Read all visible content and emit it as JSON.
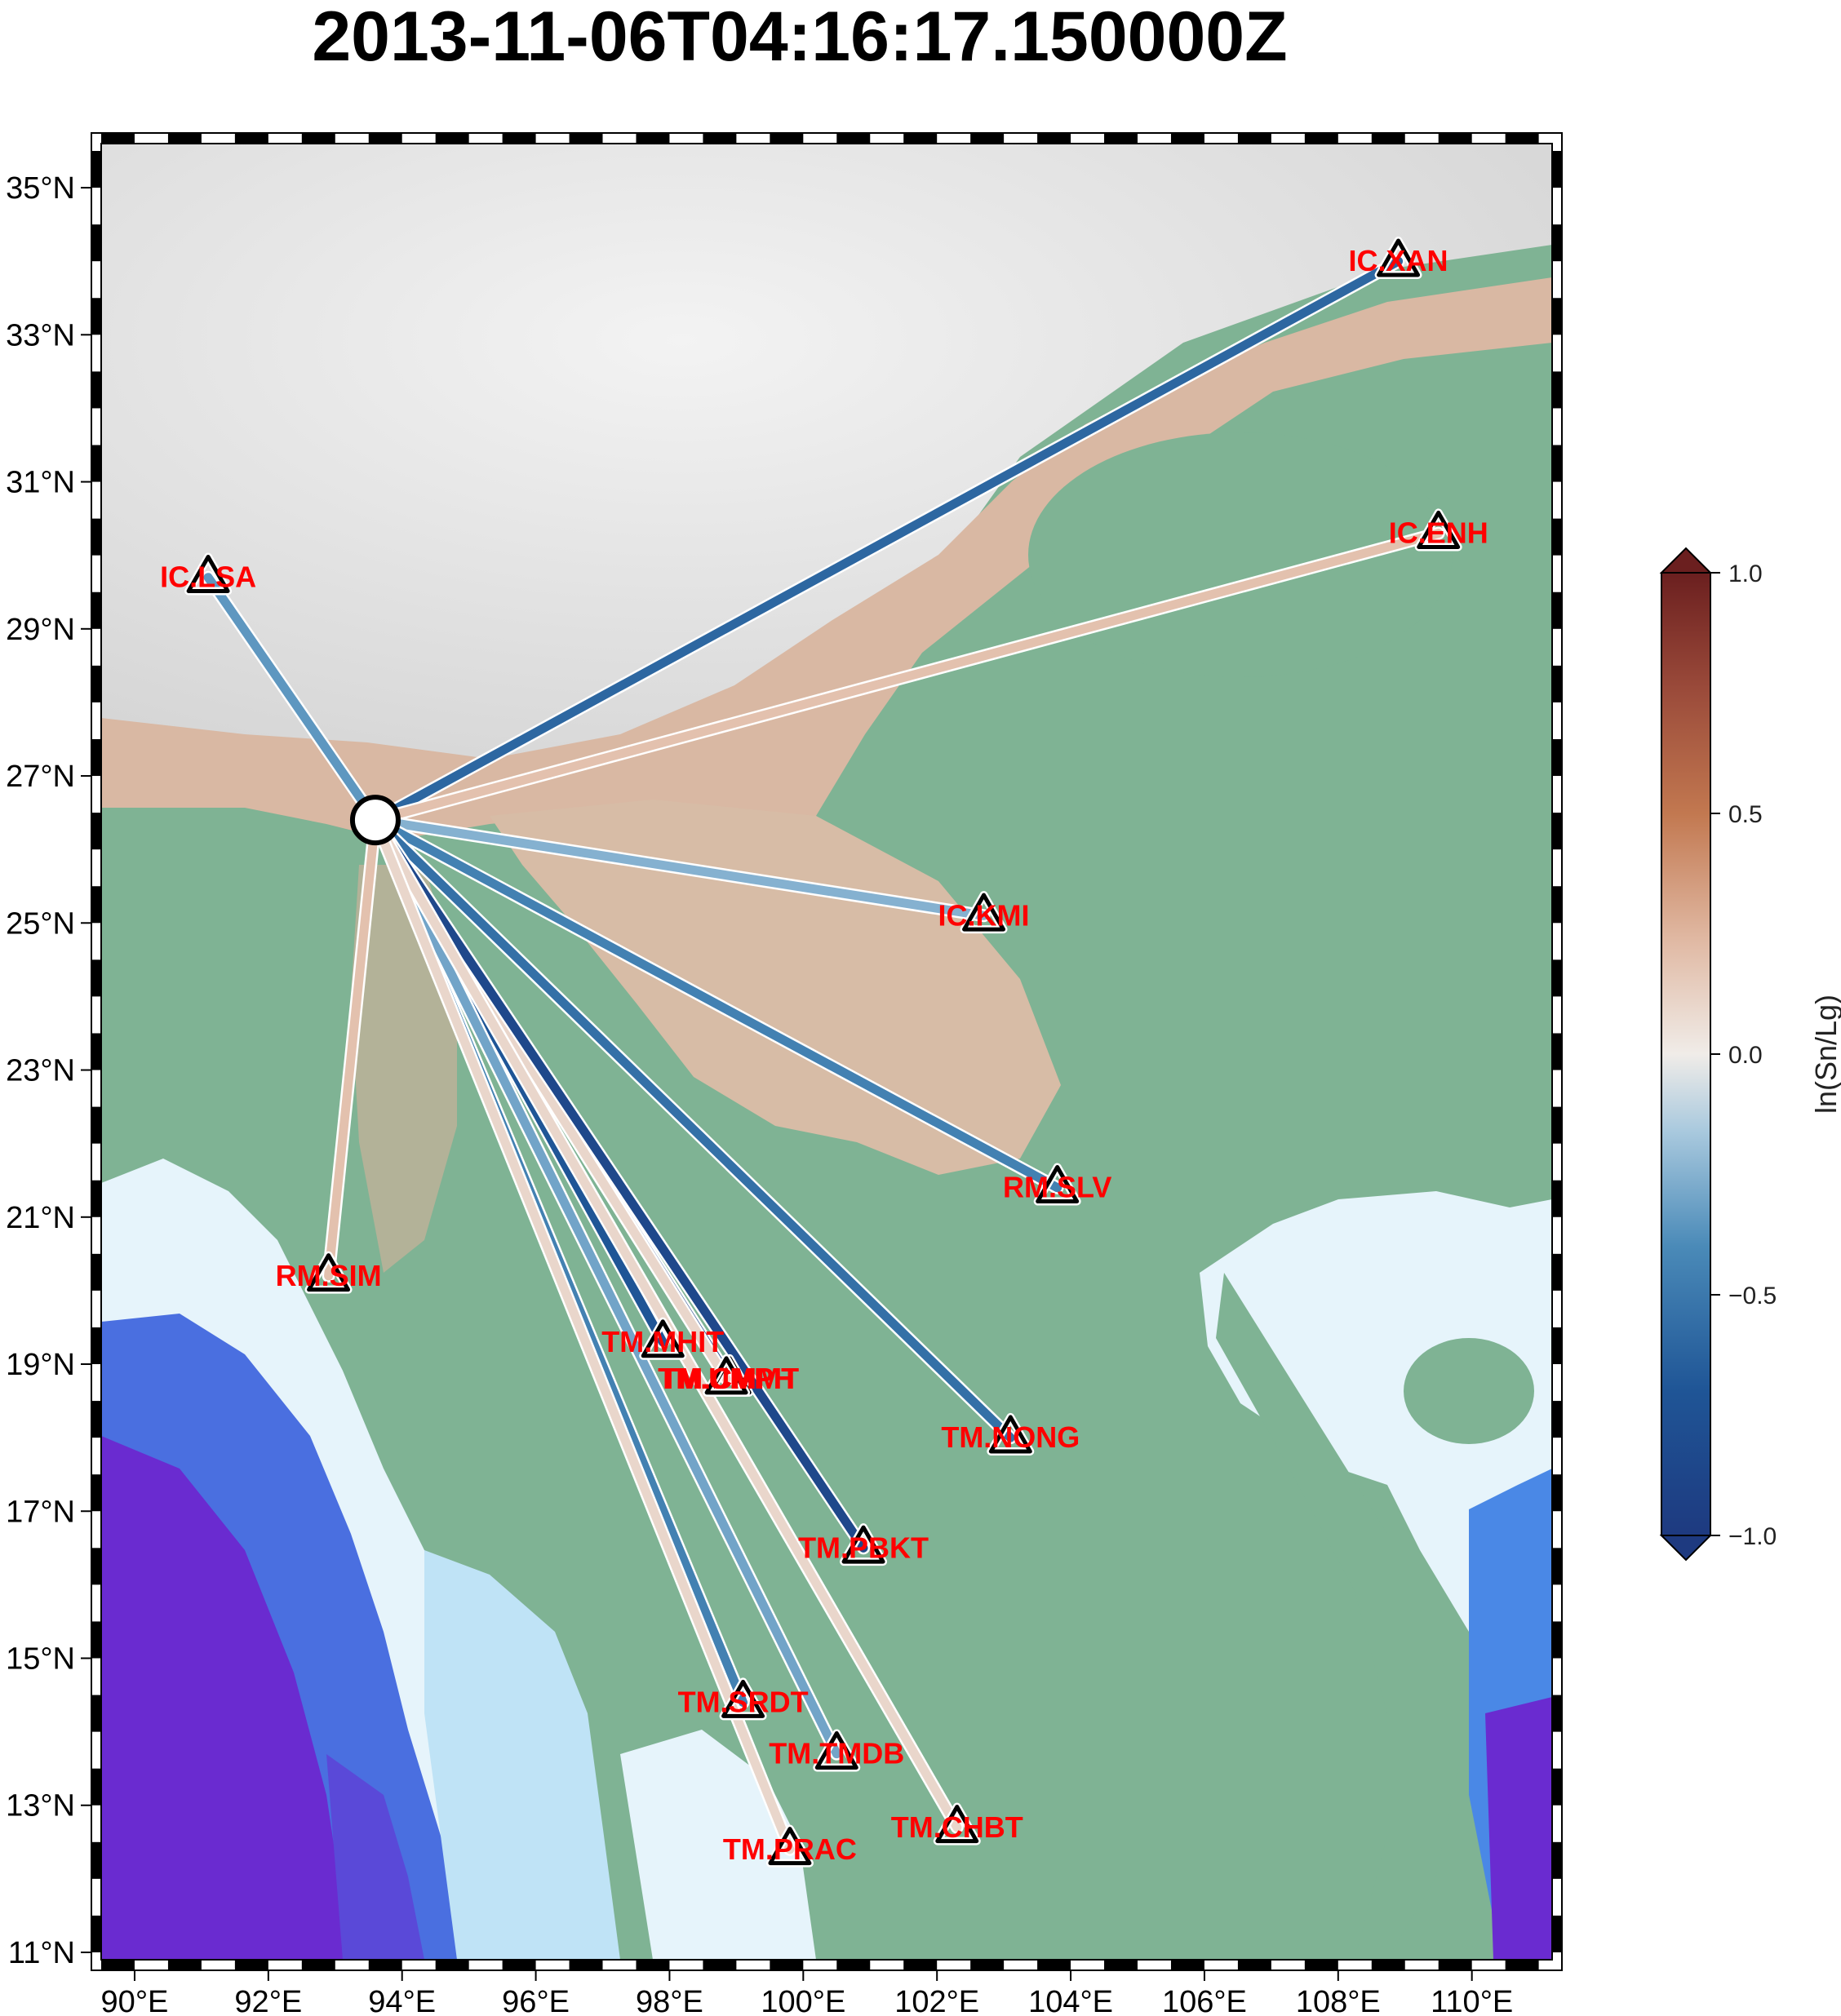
{
  "title": "2013-11-06T04:16:17.150000Z",
  "map": {
    "lon_range": [
      89.5,
      111.2
    ],
    "lat_range": [
      10.9,
      35.6
    ],
    "lon_ticks": [
      {
        "value": 90,
        "label": "90°E"
      },
      {
        "value": 92,
        "label": "92°E"
      },
      {
        "value": 94,
        "label": "94°E"
      },
      {
        "value": 96,
        "label": "96°E"
      },
      {
        "value": 98,
        "label": "98°E"
      },
      {
        "value": 100,
        "label": "100°E"
      },
      {
        "value": 102,
        "label": "102°E"
      },
      {
        "value": 104,
        "label": "104°E"
      },
      {
        "value": 106,
        "label": "106°E"
      },
      {
        "value": 108,
        "label": "108°E"
      },
      {
        "value": 110,
        "label": "110°E"
      }
    ],
    "lat_ticks": [
      {
        "value": 11,
        "label": "11°N"
      },
      {
        "value": 13,
        "label": "13°N"
      },
      {
        "value": 15,
        "label": "15°N"
      },
      {
        "value": 17,
        "label": "17°N"
      },
      {
        "value": 19,
        "label": "19°N"
      },
      {
        "value": 21,
        "label": "21°N"
      },
      {
        "value": 23,
        "label": "23°N"
      },
      {
        "value": 25,
        "label": "25°N"
      },
      {
        "value": 27,
        "label": "27°N"
      },
      {
        "value": 29,
        "label": "29°N"
      },
      {
        "value": 31,
        "label": "31°N"
      },
      {
        "value": 33,
        "label": "33°N"
      },
      {
        "value": 35,
        "label": "35°N"
      }
    ]
  },
  "event": {
    "lon": 93.6,
    "lat": 26.4
  },
  "stations": [
    {
      "name": "IC.LSA",
      "lon": 91.1,
      "lat": 29.7,
      "value": -0.35
    },
    {
      "name": "IC.XAN",
      "lon": 108.9,
      "lat": 34.0,
      "value": -0.6
    },
    {
      "name": "IC.ENH",
      "lon": 109.5,
      "lat": 30.3,
      "value": 0.2
    },
    {
      "name": "IC.KMI",
      "lon": 102.7,
      "lat": 25.1,
      "value": -0.25
    },
    {
      "name": "RM.SLV",
      "lon": 103.8,
      "lat": 21.4,
      "value": -0.45
    },
    {
      "name": "RM.SIM",
      "lon": 92.9,
      "lat": 20.2,
      "value": 0.2
    },
    {
      "name": "TM.MHIT",
      "lon": 97.9,
      "lat": 19.3,
      "value": -0.7
    },
    {
      "name": "TM.CMMT",
      "lon": 98.9,
      "lat": 18.8,
      "value": -0.9
    },
    {
      "name": "TM.UMPH",
      "lon": 98.85,
      "lat": 18.8,
      "value": 0.1
    },
    {
      "name": "TM.NONG",
      "lon": 103.1,
      "lat": 18.0,
      "value": -0.55
    },
    {
      "name": "TM.PBKT",
      "lon": 100.9,
      "lat": 16.5,
      "value": -0.85
    },
    {
      "name": "TM.SRDT",
      "lon": 99.1,
      "lat": 14.4,
      "value": -0.45
    },
    {
      "name": "TM.TMDB",
      "lon": 100.5,
      "lat": 13.7,
      "value": -0.3
    },
    {
      "name": "TM.CHBT",
      "lon": 102.3,
      "lat": 12.7,
      "value": 0.1
    },
    {
      "name": "TM.PRAC",
      "lon": 99.8,
      "lat": 12.4,
      "value": 0.1
    }
  ],
  "colorbar": {
    "label": "ln(Sn/Lg)",
    "range": [
      -1.0,
      1.0
    ],
    "ticks": [
      {
        "value": 1.0,
        "label": "1.0"
      },
      {
        "value": 0.5,
        "label": "0.5"
      },
      {
        "value": 0.0,
        "label": "0.0"
      },
      {
        "value": -0.5,
        "label": "−0.5"
      },
      {
        "value": -1.0,
        "label": "−1.0"
      }
    ],
    "colors": {
      "max": "#6b1f1f",
      "high": "#c27850",
      "mid": "#f0ece8",
      "low": "#4a8ab8",
      "min": "#1e3a80"
    }
  }
}
